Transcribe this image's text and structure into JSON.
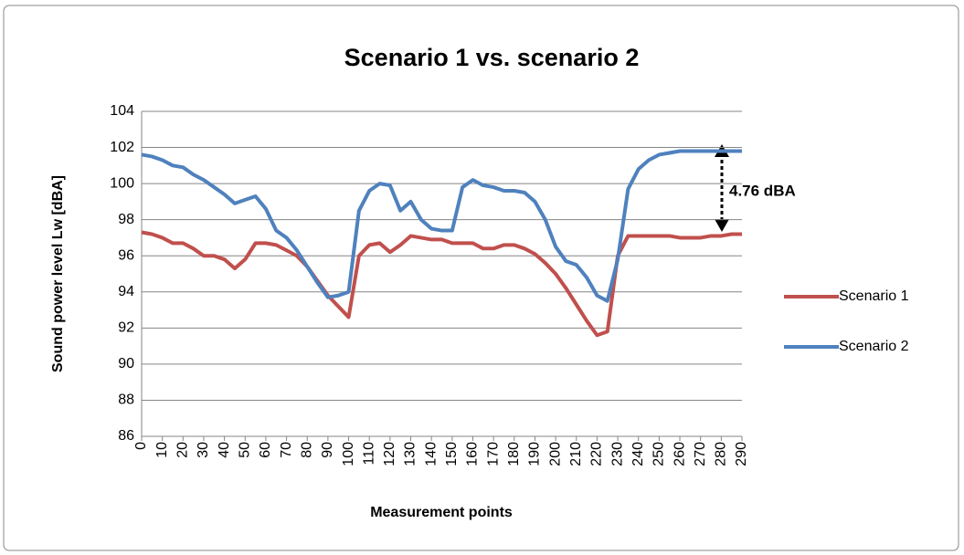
{
  "chart_data": {
    "type": "line",
    "title": "Scenario 1 vs. scenario 2",
    "x_label": "Measurement points",
    "y_label": "Sound power level Lw [dBA]",
    "annotation": "4.76 dBA",
    "x": [
      0,
      5,
      10,
      15,
      20,
      25,
      30,
      35,
      40,
      45,
      50,
      55,
      60,
      65,
      70,
      75,
      80,
      85,
      90,
      95,
      100,
      105,
      110,
      115,
      120,
      125,
      130,
      135,
      140,
      145,
      150,
      155,
      160,
      165,
      170,
      175,
      180,
      185,
      190,
      195,
      200,
      205,
      210,
      215,
      220,
      225,
      230,
      235,
      240,
      245,
      250,
      255,
      260,
      265,
      270,
      275,
      280,
      285,
      290
    ],
    "series": [
      {
        "name": "Scenario 1",
        "color": "#c0504d",
        "values": [
          97.3,
          97.2,
          97.0,
          96.7,
          96.7,
          96.4,
          96.0,
          96.0,
          95.8,
          95.3,
          95.8,
          96.7,
          96.7,
          96.6,
          96.3,
          96.0,
          95.4,
          94.6,
          93.8,
          93.2,
          92.6,
          96.0,
          96.6,
          96.7,
          96.2,
          96.6,
          97.1,
          97.0,
          96.9,
          96.9,
          96.7,
          96.7,
          96.7,
          96.4,
          96.4,
          96.6,
          96.6,
          96.4,
          96.1,
          95.6,
          95.0,
          94.2,
          93.3,
          92.4,
          91.6,
          91.8,
          96.0,
          97.1,
          97.1,
          97.1,
          97.1,
          97.1,
          97.0,
          97.0,
          97.0,
          97.1,
          97.1,
          97.2,
          97.2
        ]
      },
      {
        "name": "Scenario 2",
        "color": "#4f81bd",
        "values": [
          101.6,
          101.5,
          101.3,
          101.0,
          100.9,
          100.5,
          100.2,
          99.8,
          99.4,
          98.9,
          99.1,
          99.3,
          98.6,
          97.4,
          97.0,
          96.3,
          95.4,
          94.5,
          93.7,
          93.8,
          94.0,
          98.5,
          99.6,
          100.0,
          99.9,
          98.5,
          99.0,
          98.0,
          97.5,
          97.4,
          97.4,
          99.8,
          100.2,
          99.9,
          99.8,
          99.6,
          99.6,
          99.5,
          99.0,
          98.0,
          96.5,
          95.7,
          95.5,
          94.8,
          93.8,
          93.5,
          95.8,
          99.7,
          100.8,
          101.3,
          101.6,
          101.7,
          101.8,
          101.8,
          101.8,
          101.8,
          101.8,
          101.8,
          101.8
        ]
      }
    ],
    "xlim": [
      0,
      290
    ],
    "xticks": [
      0,
      10,
      20,
      30,
      40,
      50,
      60,
      70,
      80,
      90,
      100,
      110,
      120,
      130,
      140,
      150,
      160,
      170,
      180,
      190,
      200,
      210,
      220,
      230,
      240,
      250,
      260,
      270,
      280,
      290
    ],
    "ylim": [
      86,
      104
    ],
    "yticks": [
      86,
      88,
      90,
      92,
      94,
      96,
      98,
      100,
      102,
      104
    ],
    "grid": true,
    "legend": "right"
  }
}
